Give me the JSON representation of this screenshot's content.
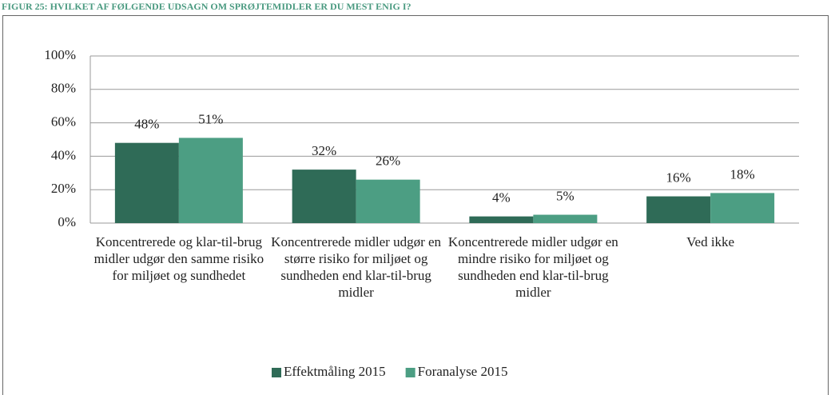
{
  "chart_data": {
    "type": "bar",
    "title": "FIGUR 25: HVILKET AF FØLGENDE UDSAGN OM SPRØJTEMIDLER ER DU MEST ENIG I?",
    "categories": [
      "Koncentrerede og klar-til-brug midler udgør den samme risiko for miljøet og sundhedet",
      "Koncentrerede midler udgør en større risiko for miljøet og sundheden end klar-til-brug midler",
      "Koncentrerede midler udgør en mindre risiko for miljøet og sundheden end klar-til-brug midler",
      "Ved ikke"
    ],
    "series": [
      {
        "name": "Effektmåling 2015",
        "color": "#2f6b57",
        "values": [
          48,
          32,
          4,
          16
        ],
        "value_labels": [
          "48%",
          "32%",
          "4%",
          "16%"
        ]
      },
      {
        "name": "Foranalyse 2015",
        "color": "#4c9e83",
        "values": [
          51,
          26,
          5,
          18
        ],
        "value_labels": [
          "51%",
          "26%",
          "5%",
          "18%"
        ]
      }
    ],
    "ylim": [
      0,
      100
    ],
    "yticks": [
      {
        "value": 0,
        "label": "0%"
      },
      {
        "value": 20,
        "label": "20%"
      },
      {
        "value": 40,
        "label": "40%"
      },
      {
        "value": 60,
        "label": "60%"
      },
      {
        "value": 80,
        "label": "80%"
      },
      {
        "value": 100,
        "label": "100%"
      }
    ],
    "grid": true,
    "legend": "bottom"
  }
}
